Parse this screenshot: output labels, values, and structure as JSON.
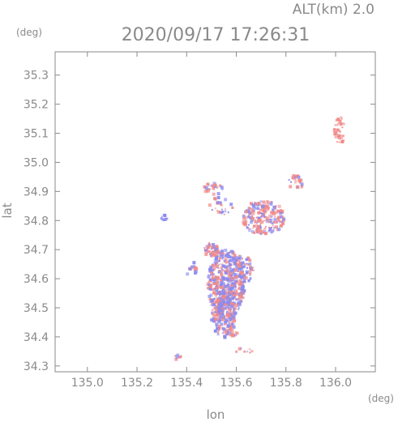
{
  "chart_data": {
    "type": "scatter",
    "title": "2020/09/17 17:26:31",
    "subtitle": "ALT(km) 2.0",
    "xlabel": "lon",
    "ylabel": "lat",
    "x_unit": "(deg)",
    "y_unit": "(deg)",
    "xlim": [
      134.87,
      136.16
    ],
    "ylim": [
      34.28,
      35.38
    ],
    "xticks": [
      135.0,
      135.2,
      135.4,
      135.6,
      135.8,
      136.0
    ],
    "yticks": [
      34.3,
      34.4,
      34.5,
      34.6,
      34.7,
      34.8,
      34.9,
      35.0,
      35.1,
      35.2,
      35.3
    ],
    "xtick_labels": [
      "135.0",
      "135.2",
      "135.4",
      "135.6",
      "135.8",
      "136.0"
    ],
    "ytick_labels": [
      "34.3",
      "34.4",
      "34.5",
      "34.6",
      "34.7",
      "34.8",
      "34.9",
      "35.0",
      "35.1",
      "35.2",
      "35.3"
    ],
    "grid": false,
    "colors": {
      "positive": "#f08a8a",
      "negative": "#8a8af0",
      "axis": "#8a8a8a"
    },
    "clusters": [
      {
        "lon": 136.02,
        "lat": 35.11,
        "r_lon": 0.025,
        "r_lat": 0.05,
        "n": 34,
        "bias": 0.95
      },
      {
        "lon": 135.56,
        "lat": 34.58,
        "r_lon": 0.075,
        "r_lat": 0.12,
        "n": 520,
        "bias": 0.45
      },
      {
        "lon": 135.55,
        "lat": 34.47,
        "r_lon": 0.05,
        "r_lat": 0.07,
        "n": 180,
        "bias": 0.5
      },
      {
        "lon": 135.71,
        "lat": 34.81,
        "r_lon": 0.085,
        "r_lat": 0.06,
        "n": 230,
        "bias": 0.6
      },
      {
        "lon": 135.5,
        "lat": 34.7,
        "r_lon": 0.03,
        "r_lat": 0.025,
        "n": 50,
        "bias": 0.7
      },
      {
        "lon": 135.62,
        "lat": 34.63,
        "r_lon": 0.05,
        "r_lat": 0.05,
        "n": 90,
        "bias": 0.35
      },
      {
        "lon": 135.51,
        "lat": 34.91,
        "r_lon": 0.04,
        "r_lat": 0.02,
        "n": 28,
        "bias": 0.6
      },
      {
        "lon": 135.84,
        "lat": 34.93,
        "r_lon": 0.03,
        "r_lat": 0.03,
        "n": 22,
        "bias": 0.6
      },
      {
        "lon": 135.31,
        "lat": 34.81,
        "r_lon": 0.014,
        "r_lat": 0.01,
        "n": 10,
        "bias": 0.05
      },
      {
        "lon": 135.54,
        "lat": 34.85,
        "r_lon": 0.05,
        "r_lat": 0.03,
        "n": 26,
        "bias": 0.5
      },
      {
        "lon": 135.56,
        "lat": 34.41,
        "r_lon": 0.045,
        "r_lat": 0.012,
        "n": 18,
        "bias": 0.4
      },
      {
        "lon": 135.36,
        "lat": 34.33,
        "r_lon": 0.018,
        "r_lat": 0.01,
        "n": 8,
        "bias": 0.6
      },
      {
        "lon": 135.63,
        "lat": 34.35,
        "r_lon": 0.035,
        "r_lat": 0.012,
        "n": 10,
        "bias": 0.5
      },
      {
        "lon": 135.42,
        "lat": 34.63,
        "r_lon": 0.02,
        "r_lat": 0.03,
        "n": 12,
        "bias": 0.5
      }
    ]
  }
}
